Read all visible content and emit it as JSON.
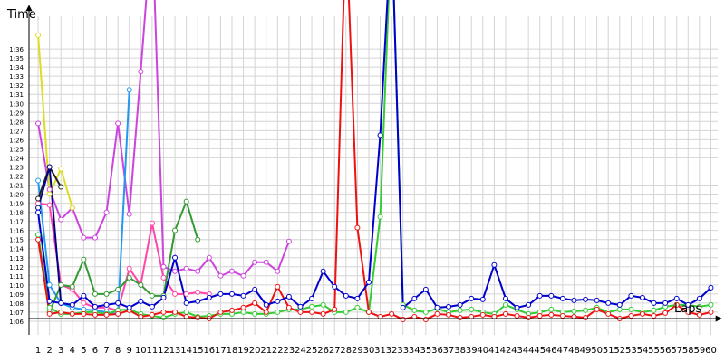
{
  "chart_data": {
    "type": "line",
    "ylabel": "Time",
    "xlabel": "Laps",
    "x": [
      1,
      2,
      3,
      4,
      5,
      6,
      7,
      8,
      9,
      10,
      11,
      12,
      13,
      14,
      15,
      16,
      17,
      18,
      19,
      20,
      21,
      22,
      23,
      24,
      25,
      26,
      27,
      28,
      29,
      30,
      31,
      32,
      33,
      34,
      35,
      36,
      37,
      38,
      39,
      40,
      41,
      42,
      43,
      44,
      45,
      46,
      47,
      48,
      49,
      50,
      51,
      52,
      53,
      54,
      55,
      56,
      57,
      58,
      59,
      60
    ],
    "xticks": [
      1,
      2,
      3,
      4,
      5,
      6,
      7,
      8,
      9,
      10,
      11,
      12,
      13,
      14,
      15,
      16,
      17,
      18,
      19,
      20,
      21,
      22,
      23,
      24,
      25,
      26,
      27,
      28,
      29,
      30,
      31,
      32,
      33,
      34,
      35,
      36,
      37,
      38,
      39,
      40,
      41,
      42,
      43,
      44,
      45,
      46,
      47,
      48,
      49,
      50,
      51,
      52,
      53,
      54,
      55,
      56,
      57,
      58,
      59,
      60
    ],
    "xlim": [
      0.2,
      60.6
    ],
    "ylim": [
      64.5,
      98.6
    ],
    "yticks": [
      {
        "value": 66,
        "label": "1:06"
      },
      {
        "value": 67,
        "label": "1:07"
      },
      {
        "value": 68,
        "label": "1:08"
      },
      {
        "value": 69,
        "label": "1:09"
      },
      {
        "value": 70,
        "label": "1:10"
      },
      {
        "value": 71,
        "label": "1:11"
      },
      {
        "value": 72,
        "label": "1:12"
      },
      {
        "value": 73,
        "label": "1:13"
      },
      {
        "value": 74,
        "label": "1:14"
      },
      {
        "value": 75,
        "label": "1:15"
      },
      {
        "value": 76,
        "label": "1:16"
      },
      {
        "value": 77,
        "label": "1:17"
      },
      {
        "value": 78,
        "label": "1:18"
      },
      {
        "value": 79,
        "label": "1:19"
      },
      {
        "value": 80,
        "label": "1:20"
      },
      {
        "value": 81,
        "label": "1:21"
      },
      {
        "value": 82,
        "label": "1:22"
      },
      {
        "value": 83,
        "label": "1:23"
      },
      {
        "value": 84,
        "label": "1:24"
      },
      {
        "value": 85,
        "label": "1:25"
      },
      {
        "value": 86,
        "label": "1:26"
      },
      {
        "value": 87,
        "label": "1:27"
      },
      {
        "value": 88,
        "label": "1:28"
      },
      {
        "value": 89,
        "label": "1:29"
      },
      {
        "value": 90,
        "label": "1:30"
      },
      {
        "value": 91,
        "label": "1:31"
      },
      {
        "value": 92,
        "label": "1:32"
      },
      {
        "value": 93,
        "label": "1:33"
      },
      {
        "value": 94,
        "label": "1:34"
      },
      {
        "value": 95,
        "label": "1:35"
      },
      {
        "value": 96,
        "label": "1:36"
      }
    ],
    "grid": true,
    "series": [
      {
        "color": "#ff44aa",
        "values": [
          79,
          78.8,
          70,
          69.5,
          68,
          67.5,
          67.5,
          67.2,
          71.8,
          70,
          76.8,
          70.8,
          69,
          69,
          69.2,
          69,
          null,
          null,
          null,
          null,
          null,
          null,
          null,
          null,
          null,
          null,
          null,
          null,
          null,
          null,
          null,
          null,
          null,
          null,
          null,
          null,
          null,
          null,
          null,
          null,
          null,
          null,
          null,
          null,
          null,
          null,
          null,
          null,
          null,
          null,
          null,
          null,
          null,
          null,
          null,
          null,
          null,
          null,
          null,
          null
        ]
      },
      {
        "color": "#cc44dd",
        "values": [
          87.8,
          80.5,
          77.2,
          78.5,
          75.2,
          75.2,
          78,
          87.8,
          77.8,
          93.5,
          110,
          72,
          71.5,
          71.8,
          71.5,
          73,
          71,
          71.5,
          71,
          72.5,
          72.5,
          71.5,
          74.8,
          null,
          null,
          null,
          null,
          null,
          null,
          null,
          null,
          null,
          null,
          null,
          null,
          null,
          null,
          null,
          null,
          null,
          null,
          null,
          null,
          null,
          null,
          null,
          null,
          null,
          null,
          null,
          null,
          null,
          null,
          null,
          null,
          null,
          null,
          null,
          null,
          null
        ]
      },
      {
        "color": "#dddd22",
        "values": [
          97.5,
          80,
          82.8,
          78.5,
          null,
          null,
          null,
          null,
          null,
          null,
          null,
          null,
          null,
          null,
          null,
          null,
          null,
          null,
          null,
          null,
          null,
          null,
          null,
          null,
          null,
          null,
          null,
          null,
          null,
          null,
          null,
          null,
          null,
          null,
          null,
          null,
          null,
          null,
          null,
          null,
          null,
          null,
          null,
          null,
          null,
          null,
          null,
          null,
          null,
          null,
          null,
          null,
          null,
          null,
          null,
          null,
          null,
          null,
          null,
          null
        ]
      },
      {
        "color": "#2299ee",
        "values": [
          81.5,
          70,
          68,
          67.5,
          67.3,
          67.2,
          67,
          66.8,
          91.5,
          null,
          null,
          null,
          null,
          null,
          null,
          null,
          null,
          null,
          null,
          null,
          null,
          null,
          null,
          null,
          null,
          null,
          null,
          null,
          null,
          null,
          null,
          null,
          null,
          null,
          null,
          null,
          null,
          null,
          null,
          null,
          null,
          null,
          null,
          null,
          null,
          null,
          null,
          null,
          null,
          null,
          null,
          null,
          null,
          null,
          null,
          null,
          null,
          null,
          null,
          null
        ]
      },
      {
        "color": "#339933",
        "values": [
          75.5,
          67,
          70,
          69.8,
          72.8,
          69,
          69,
          69.5,
          70.8,
          70,
          68.8,
          68.8,
          76,
          79.2,
          75,
          null,
          null,
          null,
          null,
          null,
          null,
          null,
          null,
          null,
          null,
          null,
          null,
          null,
          null,
          null,
          null,
          null,
          null,
          null,
          null,
          null,
          null,
          null,
          null,
          null,
          null,
          null,
          null,
          null,
          null,
          null,
          null,
          null,
          null,
          null,
          null,
          null,
          null,
          null,
          null,
          null,
          null,
          null,
          null,
          null
        ]
      },
      {
        "color": "#222222",
        "values": [
          79.5,
          83,
          80.8,
          null,
          null,
          null,
          null,
          null,
          null,
          null,
          null,
          null,
          null,
          null,
          null,
          null,
          null,
          null,
          null,
          null,
          null,
          null,
          null,
          null,
          null,
          null,
          null,
          null,
          null,
          null,
          null,
          null,
          null,
          null,
          null,
          null,
          null,
          null,
          null,
          null,
          null,
          null,
          null,
          null,
          null,
          null,
          null,
          null,
          null,
          null,
          null,
          null,
          null,
          null,
          null,
          null,
          null,
          null,
          null,
          null
        ]
      },
      {
        "color": "#000088",
        "values": [
          78.5,
          83,
          68,
          null,
          null,
          null,
          null,
          null,
          null,
          null,
          null,
          null,
          null,
          null,
          null,
          null,
          null,
          null,
          null,
          null,
          null,
          null,
          null,
          null,
          null,
          null,
          null,
          null,
          null,
          null,
          null,
          null,
          null,
          null,
          null,
          null,
          null,
          null,
          null,
          null,
          null,
          null,
          null,
          null,
          null,
          null,
          null,
          null,
          null,
          null,
          null,
          null,
          null,
          null,
          null,
          null,
          null,
          null,
          null,
          null
        ]
      },
      {
        "color": "#33cc33",
        "values": [
          75.5,
          67.5,
          66.8,
          66.8,
          67,
          67,
          66.8,
          67.2,
          67.3,
          66.8,
          66.6,
          66.4,
          66.8,
          67,
          66.5,
          66.6,
          66.8,
          66.8,
          67,
          66.8,
          66.8,
          67,
          67.3,
          67.3,
          67.6,
          67.8,
          67,
          67,
          67.5,
          67,
          77.5,
          110,
          67.8,
          67.2,
          67,
          67.4,
          67,
          67.2,
          67.3,
          67,
          66.8,
          67.8,
          67.3,
          66.8,
          67,
          67.3,
          67,
          67.1,
          67.2,
          67.5,
          67,
          67.3,
          67.3,
          67,
          67.2,
          67.6,
          67.8,
          67.8,
          67.6,
          67.8
        ]
      },
      {
        "color": "#ee1111",
        "values": [
          75,
          66.8,
          67,
          66.8,
          66.8,
          66.7,
          66.7,
          66.8,
          67.2,
          66.5,
          66.7,
          67,
          67,
          66.5,
          66.4,
          66.3,
          67,
          67.2,
          67.5,
          68,
          67,
          69.8,
          67.5,
          67,
          67,
          66.8,
          67.3,
          110,
          76.3,
          67,
          66.5,
          66.8,
          66.2,
          66.5,
          66.2,
          66.8,
          66.7,
          66.4,
          66.5,
          66.7,
          66.5,
          66.8,
          66.6,
          66.4,
          66.6,
          66.7,
          66.6,
          66.5,
          66.4,
          67.3,
          66.8,
          66.3,
          66.6,
          66.8,
          66.6,
          66.9,
          67.8,
          67,
          66.7,
          67
        ]
      },
      {
        "color": "#0000cc",
        "values": [
          78,
          68.2,
          68,
          67.8,
          68.8,
          67.6,
          67.8,
          68,
          67.5,
          68.2,
          67.6,
          68.6,
          73,
          68,
          68.2,
          68.6,
          69,
          69,
          68.8,
          69.5,
          67.8,
          68.2,
          68.7,
          67.6,
          68.5,
          71.5,
          69.8,
          68.8,
          68.5,
          70.3,
          86.5,
          110,
          67.5,
          68.5,
          69.5,
          67.5,
          67.6,
          67.8,
          68.5,
          68.4,
          72.2,
          68.5,
          67.5,
          67.8,
          68.8,
          68.8,
          68.5,
          68.3,
          68.4,
          68.3,
          68,
          67.8,
          68.8,
          68.6,
          68,
          68,
          68.5,
          67.8,
          68.5,
          69.7
        ]
      }
    ]
  }
}
